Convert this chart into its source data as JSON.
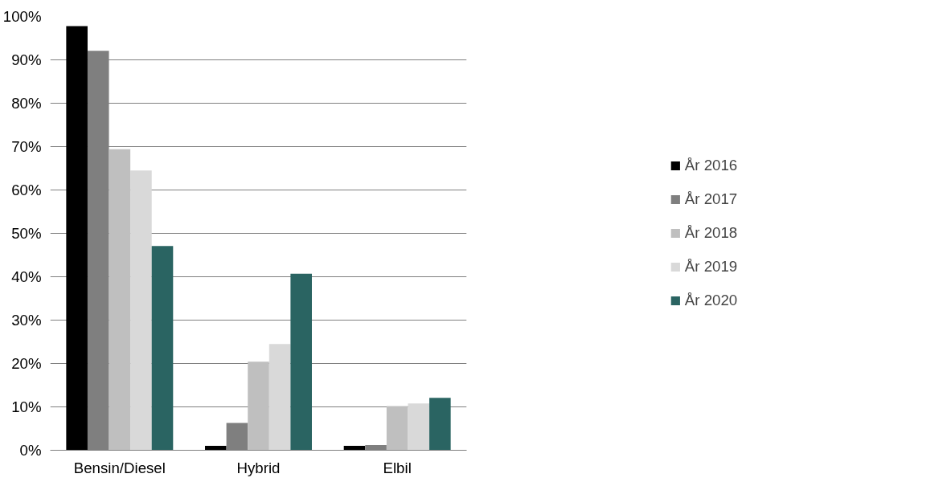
{
  "chart_data": {
    "type": "bar",
    "categories": [
      "Bensin/Diesel",
      "Hybrid",
      "Elbil"
    ],
    "series": [
      {
        "name": "År 2016",
        "color": "#000000",
        "values": [
          97.8,
          1.0,
          1.0
        ]
      },
      {
        "name": "År 2017",
        "color": "#7f7f7f",
        "values": [
          92.1,
          6.3,
          1.2
        ]
      },
      {
        "name": "År 2018",
        "color": "#bfbfbf",
        "values": [
          69.4,
          20.4,
          10.2
        ]
      },
      {
        "name": "År 2019",
        "color": "#d9d9d9",
        "values": [
          64.5,
          24.5,
          10.8
        ]
      },
      {
        "name": "År 2020",
        "color": "#2a6462",
        "values": [
          47.1,
          40.7,
          12.1
        ]
      }
    ],
    "ylim": [
      0,
      100
    ],
    "yticks": [
      {
        "value": 0,
        "label": "0%"
      },
      {
        "value": 10,
        "label": "10%"
      },
      {
        "value": 20,
        "label": "20%"
      },
      {
        "value": 30,
        "label": "30%"
      },
      {
        "value": 40,
        "label": "40%"
      },
      {
        "value": 50,
        "label": "50%"
      },
      {
        "value": 60,
        "label": "60%"
      },
      {
        "value": 70,
        "label": "70%"
      },
      {
        "value": 80,
        "label": "80%"
      },
      {
        "value": 90,
        "label": "90%"
      },
      {
        "value": 100,
        "label": "100%"
      }
    ],
    "grid": "y",
    "legend": "right"
  }
}
